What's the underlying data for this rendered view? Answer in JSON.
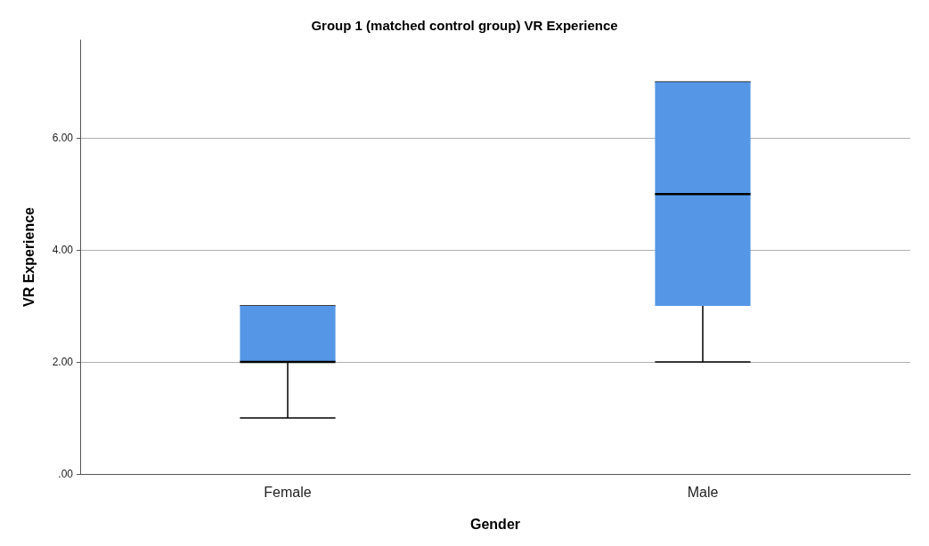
{
  "chart_data": {
    "type": "box",
    "title": "Group 1 (matched control group) VR Experience",
    "xlabel": "Gender",
    "ylabel": "VR Experience",
    "categories": [
      "Female",
      "Male"
    ],
    "color": "#5597e6",
    "boxes": [
      {
        "low": 1,
        "q1": 2,
        "median": 2,
        "q3": 3,
        "high": 3
      },
      {
        "low": 2,
        "q1": 3,
        "median": 5,
        "q3": 7,
        "high": 7
      }
    ],
    "ylim": [
      0,
      7.75
    ],
    "yticks": [
      {
        "value": 0,
        "label": ".00"
      },
      {
        "value": 2,
        "label": "2.00"
      },
      {
        "value": 4,
        "label": "4.00"
      },
      {
        "value": 6,
        "label": "6.00"
      }
    ],
    "grid": "y"
  }
}
